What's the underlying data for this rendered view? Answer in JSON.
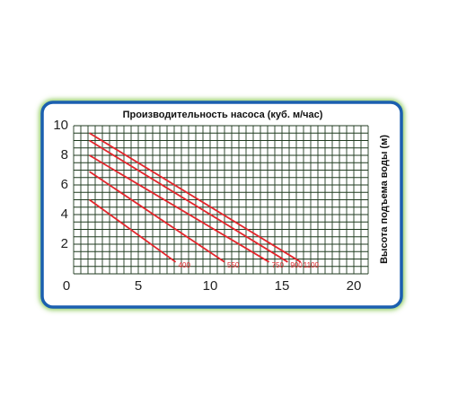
{
  "chart_data": {
    "type": "line",
    "x_label": "Производительность насоса (куб. м/час)",
    "y_label": "Высота подъема воды (м)",
    "xlim": [
      0,
      20.5
    ],
    "ylim": [
      0,
      10
    ],
    "xticks": [
      0,
      5,
      10,
      15,
      20
    ],
    "yticks": [
      2,
      4,
      6,
      8,
      10
    ],
    "grid": true,
    "grid_step": 0.5,
    "series": [
      {
        "name": "400",
        "color": "#e3262c",
        "x": [
          1.1,
          7.1
        ],
        "values": [
          5,
          0.8
        ]
      },
      {
        "name": "550",
        "color": "#e3262c",
        "x": [
          1.1,
          10.5
        ],
        "values": [
          6.9,
          0.8
        ]
      },
      {
        "name": "750",
        "color": "#e3262c",
        "x": [
          1.1,
          13.6
        ],
        "values": [
          8,
          0.8
        ]
      },
      {
        "name": "900",
        "color": "#e3262c",
        "x": [
          1.1,
          14.9
        ],
        "values": [
          9,
          0.8
        ]
      },
      {
        "name": "1100",
        "color": "#e3262c",
        "x": [
          1.1,
          15.8
        ],
        "values": [
          9.5,
          0.8
        ]
      }
    ]
  }
}
